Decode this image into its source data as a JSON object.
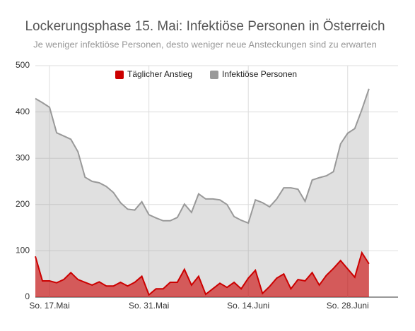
{
  "chart_data": {
    "type": "area",
    "title": "Lockerungsphase 15. Mai: Infektiöse Personen in Österreich",
    "subtitle": "Je weniger infektiöse Personen, desto weniger neue Ansteckungen sind zu erwarten",
    "categories": [
      null,
      null,
      "So. 17.Mai",
      null,
      null,
      null,
      null,
      null,
      null,
      null,
      null,
      null,
      null,
      null,
      null,
      null,
      "So. 31.Mai",
      null,
      null,
      null,
      null,
      null,
      null,
      null,
      null,
      null,
      null,
      null,
      null,
      null,
      "So. 14.Juni",
      null,
      null,
      null,
      null,
      null,
      null,
      null,
      null,
      null,
      null,
      null,
      null,
      null,
      "So. 28.Juni",
      null,
      null,
      null
    ],
    "series": [
      {
        "name": "Infektiöse Personen",
        "color": "#999999",
        "values": [
          429,
          420,
          410,
          355,
          348,
          341,
          314,
          259,
          250,
          247,
          239,
          226,
          204,
          190,
          188,
          206,
          178,
          171,
          165,
          165,
          172,
          201,
          183,
          223,
          212,
          212,
          210,
          200,
          174,
          166,
          160,
          210,
          204,
          195,
          212,
          236,
          236,
          233,
          207,
          253,
          258,
          262,
          271,
          331,
          354,
          364,
          405,
          450
        ]
      },
      {
        "name": "Täglicher Anstieg",
        "color": "#cc0000",
        "values": [
          88,
          35,
          35,
          31,
          38,
          53,
          38,
          32,
          26,
          33,
          24,
          24,
          32,
          24,
          32,
          45,
          5,
          18,
          18,
          32,
          32,
          60,
          26,
          45,
          6,
          18,
          30,
          21,
          32,
          18,
          41,
          58,
          8,
          23,
          41,
          50,
          18,
          38,
          35,
          53,
          26,
          47,
          62,
          79,
          61,
          43,
          96,
          72
        ]
      }
    ],
    "ylim": [
      0,
      500
    ],
    "yticks": [
      0,
      100,
      200,
      300,
      400,
      500
    ],
    "grid": true,
    "legend": "top"
  }
}
